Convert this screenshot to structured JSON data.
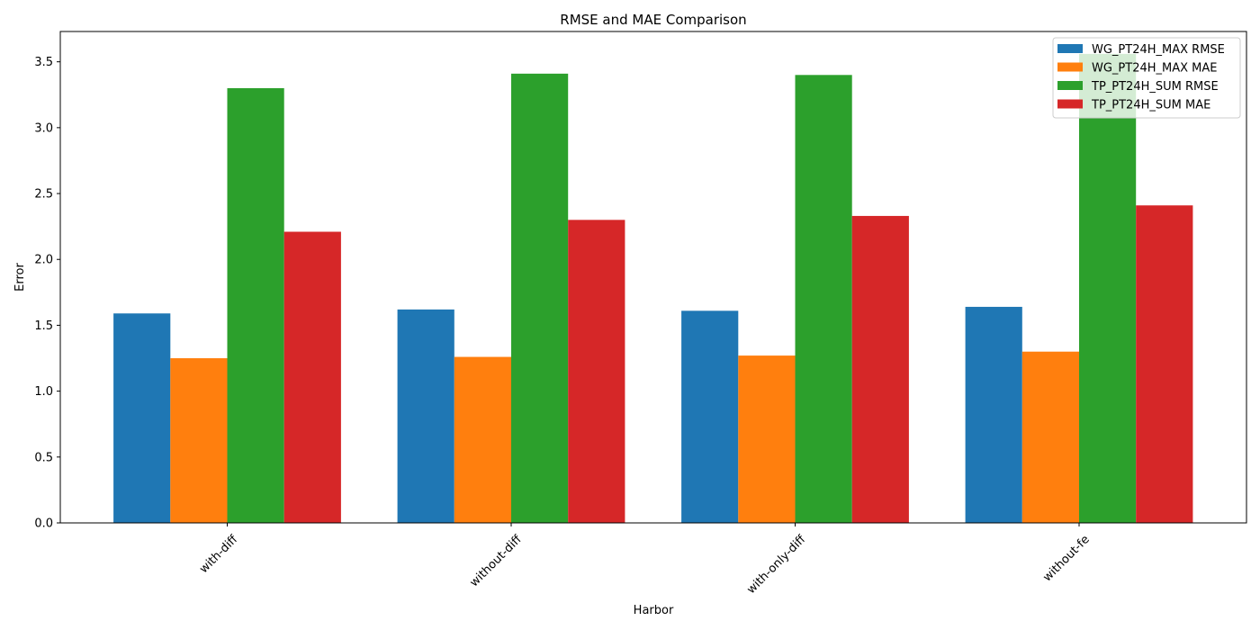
{
  "chart_data": {
    "type": "bar",
    "title": "RMSE and MAE Comparison",
    "xlabel": "Harbor",
    "ylabel": "Error",
    "categories": [
      "with-diff",
      "without-diff",
      "with-only-diff",
      "without-fe"
    ],
    "series": [
      {
        "name": "WG_PT24H_MAX RMSE",
        "color": "#1f77b4",
        "values": [
          1.59,
          1.62,
          1.61,
          1.64
        ]
      },
      {
        "name": "WG_PT24H_MAX MAE",
        "color": "#ff7f0e",
        "values": [
          1.25,
          1.26,
          1.27,
          1.3
        ]
      },
      {
        "name": "TP_PT24H_SUM RMSE",
        "color": "#2ca02c",
        "values": [
          3.3,
          3.41,
          3.4,
          3.56
        ]
      },
      {
        "name": "TP_PT24H_SUM MAE",
        "color": "#d62728",
        "values": [
          2.21,
          2.3,
          2.33,
          2.41
        ]
      }
    ],
    "ylim": [
      0,
      3.73
    ],
    "yticks": [
      0.0,
      0.5,
      1.0,
      1.5,
      2.0,
      2.5,
      3.0,
      3.5
    ],
    "ytick_labels": [
      "0.0",
      "0.5",
      "1.0",
      "1.5",
      "2.0",
      "2.5",
      "3.0",
      "3.5"
    ],
    "xtick_rotation": 45,
    "grid": false,
    "legend_position": "top-right"
  }
}
